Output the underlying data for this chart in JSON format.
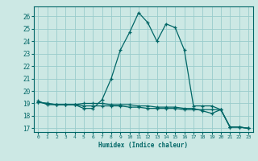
{
  "xlabel": "Humidex (Indice chaleur)",
  "bg_color": "#cce8e4",
  "grid_color": "#99cccc",
  "line_color": "#006666",
  "xlim": [
    -0.5,
    23.5
  ],
  "ylim": [
    16.7,
    26.8
  ],
  "yticks": [
    17,
    18,
    19,
    20,
    21,
    22,
    23,
    24,
    25,
    26
  ],
  "xticks": [
    0,
    1,
    2,
    3,
    4,
    5,
    6,
    7,
    8,
    9,
    10,
    11,
    12,
    13,
    14,
    15,
    16,
    17,
    18,
    19,
    20,
    21,
    22,
    23
  ],
  "line1_x": [
    0,
    1,
    2,
    3,
    4,
    5,
    6,
    7,
    8,
    9,
    10,
    11,
    12,
    13,
    14,
    15,
    16,
    17,
    18,
    19,
    20,
    21,
    22,
    23
  ],
  "line1_y": [
    19.2,
    18.9,
    18.9,
    18.9,
    18.9,
    18.6,
    18.6,
    19.3,
    21.0,
    23.3,
    24.7,
    26.3,
    25.5,
    24.0,
    25.4,
    25.1,
    23.3,
    18.8,
    18.8,
    18.8,
    18.5,
    17.1,
    17.1,
    17.0
  ],
  "line2_x": [
    0,
    1,
    2,
    3,
    4,
    5,
    6,
    7,
    8,
    9,
    10,
    11,
    12,
    13,
    14,
    15,
    16,
    17,
    18,
    19,
    20,
    21,
    22,
    23
  ],
  "line2_y": [
    19.1,
    19.0,
    18.9,
    18.9,
    18.9,
    18.8,
    18.8,
    18.8,
    18.8,
    18.8,
    18.7,
    18.7,
    18.6,
    18.6,
    18.6,
    18.6,
    18.5,
    18.5,
    18.5,
    18.5,
    18.5,
    17.1,
    17.1,
    17.0
  ],
  "line3_x": [
    0,
    1,
    2,
    3,
    4,
    5,
    6,
    7,
    8,
    9,
    10,
    11,
    12,
    13,
    14,
    15,
    16,
    17,
    18,
    19,
    20,
    21,
    22,
    23
  ],
  "line3_y": [
    19.1,
    19.0,
    18.9,
    18.9,
    18.9,
    19.0,
    19.0,
    19.0,
    18.9,
    18.9,
    18.9,
    18.8,
    18.8,
    18.7,
    18.7,
    18.7,
    18.6,
    18.6,
    18.4,
    18.2,
    18.5,
    17.1,
    17.1,
    17.0
  ]
}
